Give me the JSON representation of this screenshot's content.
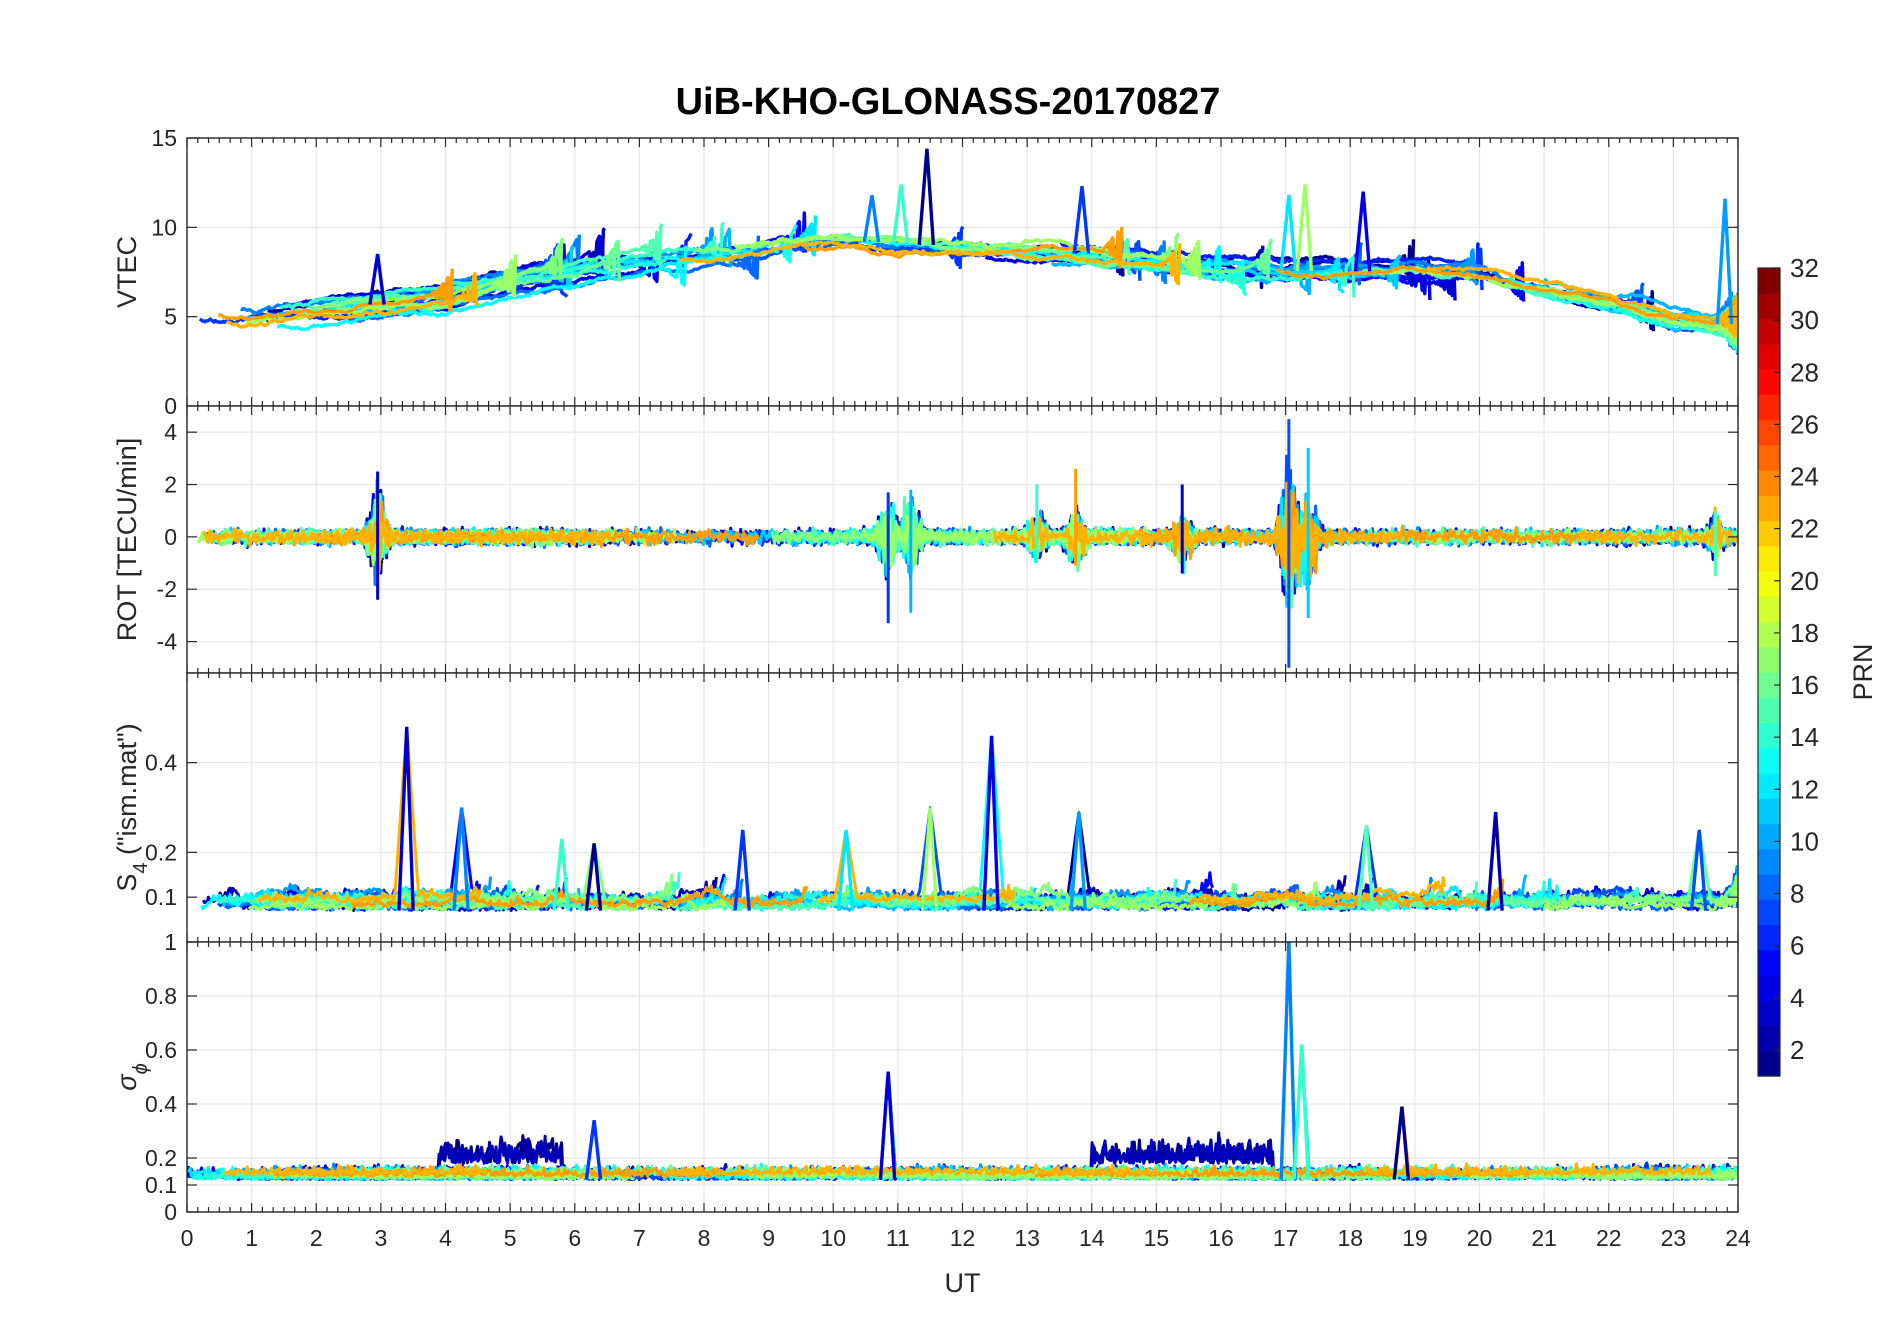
{
  "figure": {
    "title": "UiB-KHO-GLONASS-20170827"
  },
  "chart_data": [
    {
      "type": "line",
      "panel": "vtec",
      "ylabel": "VTEC",
      "xlim": [
        0,
        24
      ],
      "ylim": [
        0,
        15
      ],
      "yticks": [
        0,
        5,
        10,
        15
      ],
      "grid": true,
      "series_count": 24,
      "levels": [
        {
          "t": 0,
          "v": 5.2
        },
        {
          "t": 1,
          "v": 4.9
        },
        {
          "t": 2,
          "v": 5.3
        },
        {
          "t": 3,
          "v": 5.7
        },
        {
          "t": 4,
          "v": 6.0
        },
        {
          "t": 5,
          "v": 7.0
        },
        {
          "t": 6,
          "v": 7.6
        },
        {
          "t": 7,
          "v": 8.1
        },
        {
          "t": 8,
          "v": 8.5
        },
        {
          "t": 9,
          "v": 8.9
        },
        {
          "t": 10,
          "v": 9.3
        },
        {
          "t": 11,
          "v": 9.1
        },
        {
          "t": 12,
          "v": 8.9
        },
        {
          "t": 13,
          "v": 8.7
        },
        {
          "t": 14,
          "v": 8.5
        },
        {
          "t": 15,
          "v": 8.1
        },
        {
          "t": 16,
          "v": 7.8
        },
        {
          "t": 17,
          "v": 7.6
        },
        {
          "t": 18,
          "v": 7.5
        },
        {
          "t": 19,
          "v": 7.7
        },
        {
          "t": 20,
          "v": 7.4
        },
        {
          "t": 21,
          "v": 6.6
        },
        {
          "t": 22,
          "v": 5.8
        },
        {
          "t": 23,
          "v": 4.9
        },
        {
          "t": 24,
          "v": 4.5
        }
      ],
      "peaks": [
        {
          "t": 2.95,
          "v": 8.5
        },
        {
          "t": 10.6,
          "v": 11.8
        },
        {
          "t": 11.05,
          "v": 12.4
        },
        {
          "t": 11.45,
          "v": 14.4
        },
        {
          "t": 13.85,
          "v": 12.3
        },
        {
          "t": 17.05,
          "v": 11.8
        },
        {
          "t": 17.3,
          "v": 12.4
        },
        {
          "t": 18.2,
          "v": 12.0
        },
        {
          "t": 23.8,
          "v": 11.6
        }
      ]
    },
    {
      "type": "line",
      "panel": "rot",
      "ylabel": "ROT [TECU/min]",
      "xlim": [
        0,
        24
      ],
      "ylim": [
        -5.2,
        5
      ],
      "yticks": [
        -4,
        -2,
        0,
        2,
        4
      ],
      "grid": true,
      "series_count": 24,
      "spikes": [
        {
          "t": 2.95,
          "min": -2.4,
          "max": 2.5
        },
        {
          "t": 10.85,
          "min": -3.3,
          "max": 1.7
        },
        {
          "t": 11.2,
          "min": -2.9,
          "max": 1.8
        },
        {
          "t": 13.15,
          "min": -1.0,
          "max": 2.0
        },
        {
          "t": 13.75,
          "min": -1.1,
          "max": 2.6
        },
        {
          "t": 15.4,
          "min": -1.4,
          "max": 2.0
        },
        {
          "t": 17.05,
          "min": -5.0,
          "max": 4.5
        },
        {
          "t": 17.35,
          "min": -3.1,
          "max": 3.4
        },
        {
          "t": 23.65,
          "min": -1.5,
          "max": 1.0
        }
      ]
    },
    {
      "type": "line",
      "panel": "s4",
      "ylabel": "S",
      "ylabel_subscript": "4",
      "ylabel_suffix": " (\"ism.mat\")",
      "xlim": [
        0,
        24
      ],
      "ylim": [
        0,
        0.6
      ],
      "yticks": [
        0.1,
        0.2,
        0.4
      ],
      "grid": true,
      "series_count": 24,
      "baseline": 0.07,
      "peaks": [
        {
          "t": 3.4,
          "v": 0.48
        },
        {
          "t": 4.25,
          "v": 0.3
        },
        {
          "t": 5.8,
          "v": 0.23
        },
        {
          "t": 6.3,
          "v": 0.22
        },
        {
          "t": 8.6,
          "v": 0.25
        },
        {
          "t": 10.2,
          "v": 0.25
        },
        {
          "t": 11.5,
          "v": 0.3
        },
        {
          "t": 12.45,
          "v": 0.46
        },
        {
          "t": 13.8,
          "v": 0.29
        },
        {
          "t": 18.25,
          "v": 0.26
        },
        {
          "t": 20.25,
          "v": 0.29
        },
        {
          "t": 23.4,
          "v": 0.25
        }
      ]
    },
    {
      "type": "line",
      "panel": "sigma_phi",
      "ylabel": "σ",
      "ylabel_subscript": "ϕ",
      "xlabel": "UT",
      "xlim": [
        0,
        24
      ],
      "ylim": [
        0,
        1
      ],
      "yticks": [
        0,
        0.1,
        0.2,
        0.4,
        0.6,
        0.8,
        1
      ],
      "xticks": [
        0,
        1,
        2,
        3,
        4,
        5,
        6,
        7,
        8,
        9,
        10,
        11,
        12,
        13,
        14,
        15,
        16,
        17,
        18,
        19,
        20,
        21,
        22,
        23,
        24
      ],
      "grid": true,
      "series_count": 24,
      "baseline": 0.12,
      "raised_intervals": [
        {
          "t0": 3.9,
          "t1": 5.8,
          "v": 0.27
        },
        {
          "t0": 14.0,
          "t1": 16.8,
          "v": 0.26
        }
      ],
      "peaks": [
        {
          "t": 10.85,
          "v": 0.52
        },
        {
          "t": 17.05,
          "v": 1.0
        },
        {
          "t": 17.25,
          "v": 0.62
        },
        {
          "t": 18.8,
          "v": 0.39
        },
        {
          "t": 6.3,
          "v": 0.34
        }
      ]
    }
  ],
  "colorbar": {
    "label": "PRN",
    "min": 1,
    "max": 32,
    "ticks": [
      2,
      4,
      6,
      8,
      10,
      12,
      14,
      16,
      18,
      20,
      22,
      24,
      26,
      28,
      30,
      32
    ],
    "colormap": "jet",
    "colors": [
      "#00008f",
      "#0000ff",
      "#0080ff",
      "#00ffff",
      "#80ff80",
      "#ffff00",
      "#ff8000",
      "#ff0000",
      "#800000"
    ]
  }
}
